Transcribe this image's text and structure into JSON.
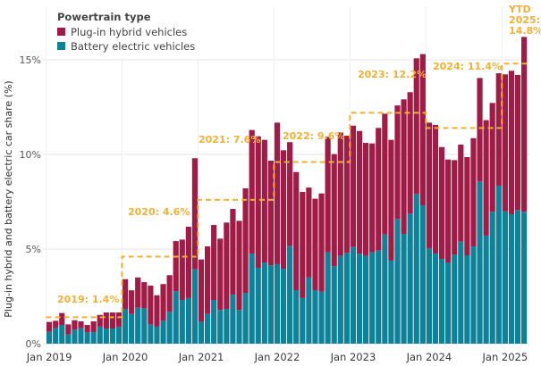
{
  "chart_data": {
    "type": "bar",
    "stacked": true,
    "title": "",
    "xlabel": "",
    "ylabel": "Plug-in hybrid and battery electric car share (%)",
    "ylim": [
      0,
      16.5
    ],
    "yticks": [
      0,
      5,
      10,
      15
    ],
    "ytick_labels": [
      "0%",
      "5%",
      "10%",
      "15%"
    ],
    "grid": "horizontal",
    "legend": {
      "title": "Powertrain type",
      "position": "top-left",
      "entries": [
        "Plug-in hybrid vehicles",
        "Battery electric vehicles"
      ]
    },
    "xtick_labels": [
      {
        "label": "Jan 2019",
        "index": 0
      },
      {
        "label": "Jan 2020",
        "index": 12
      },
      {
        "label": "Jan 2021",
        "index": 24
      },
      {
        "label": "Jan 2022",
        "index": 36
      },
      {
        "label": "Jan 2023",
        "index": 48
      },
      {
        "label": "Jan 2024",
        "index": 60
      },
      {
        "label": "Jan 2025",
        "index": 72
      }
    ],
    "categories": [
      "2019-01",
      "2019-02",
      "2019-03",
      "2019-04",
      "2019-05",
      "2019-06",
      "2019-07",
      "2019-08",
      "2019-09",
      "2019-10",
      "2019-11",
      "2019-12",
      "2020-01",
      "2020-02",
      "2020-03",
      "2020-04",
      "2020-05",
      "2020-06",
      "2020-07",
      "2020-08",
      "2020-09",
      "2020-10",
      "2020-11",
      "2020-12",
      "2021-01",
      "2021-02",
      "2021-03",
      "2021-04",
      "2021-05",
      "2021-06",
      "2021-07",
      "2021-08",
      "2021-09",
      "2021-10",
      "2021-11",
      "2021-12",
      "2022-01",
      "2022-02",
      "2022-03",
      "2022-04",
      "2022-05",
      "2022-06",
      "2022-07",
      "2022-08",
      "2022-09",
      "2022-10",
      "2022-11",
      "2022-12",
      "2023-01",
      "2023-02",
      "2023-03",
      "2023-04",
      "2023-05",
      "2023-06",
      "2023-07",
      "2023-08",
      "2023-09",
      "2023-10",
      "2023-11",
      "2023-12",
      "2024-01",
      "2024-02",
      "2024-03",
      "2024-04",
      "2024-05",
      "2024-06",
      "2024-07",
      "2024-08",
      "2024-09",
      "2024-10",
      "2024-11",
      "2024-12",
      "2025-01",
      "2025-02",
      "2025-03",
      "2025-04"
    ],
    "series": [
      {
        "name": "Battery electric vehicles",
        "color": "#0E8299",
        "values": [
          0.63,
          0.83,
          0.99,
          0.49,
          0.74,
          0.83,
          0.61,
          0.61,
          0.9,
          0.8,
          0.8,
          0.9,
          1.84,
          1.57,
          1.9,
          1.87,
          1.02,
          0.9,
          1.21,
          1.68,
          2.78,
          2.31,
          2.41,
          3.93,
          1.15,
          1.57,
          2.31,
          1.78,
          1.84,
          2.59,
          1.78,
          2.67,
          4.76,
          4.01,
          4.29,
          4.14,
          4.2,
          3.96,
          5.17,
          2.83,
          2.41,
          3.51,
          2.83,
          2.75,
          4.83,
          4.09,
          4.64,
          4.8,
          5.11,
          4.76,
          4.64,
          4.83,
          4.92,
          5.77,
          4.39,
          6.6,
          5.8,
          6.87,
          7.91,
          7.31,
          5.03,
          4.76,
          4.48,
          4.29,
          4.7,
          5.39,
          4.67,
          5.14,
          8.57,
          5.71,
          6.97,
          8.35,
          7.0,
          6.84,
          7.06,
          6.97
        ]
      },
      {
        "name": "Plug-in hybrid vehicles",
        "color": "#A01C47",
        "values": [
          0.52,
          0.38,
          0.63,
          0.53,
          0.5,
          0.35,
          0.38,
          0.57,
          0.62,
          0.85,
          0.85,
          0.75,
          1.57,
          1.25,
          1.6,
          1.38,
          2.05,
          1.66,
          1.94,
          1.94,
          2.64,
          3.19,
          3.77,
          5.87,
          3.3,
          3.57,
          3.96,
          3.77,
          4.56,
          4.53,
          4.71,
          5.54,
          6.53,
          6.95,
          6.48,
          5.53,
          7.48,
          6.26,
          5.48,
          6.24,
          5.61,
          4.74,
          4.83,
          5.19,
          6.1,
          5.93,
          6.52,
          6.19,
          6.41,
          6.48,
          5.97,
          5.75,
          6.48,
          6.38,
          6.38,
          5.99,
          7.11,
          6.42,
          7.17,
          7.99,
          6.65,
          6.8,
          5.91,
          5.44,
          5.0,
          5.13,
          5.19,
          5.72,
          5.47,
          6.1,
          5.75,
          5.94,
          7.23,
          7.58,
          7.14,
          9.24
        ]
      }
    ],
    "annual_averages": [
      {
        "label": "2019: 1.4%",
        "year": 2019,
        "value": 1.4
      },
      {
        "label": "2020: 4.6%",
        "year": 2020,
        "value": 4.6
      },
      {
        "label": "2021: 7.6%",
        "year": 2021,
        "value": 7.6
      },
      {
        "label": "2022: 9.6%",
        "year": 2022,
        "value": 9.6
      },
      {
        "label": "2023: 12.2%",
        "year": 2023,
        "value": 12.2
      },
      {
        "label": "2024: 11.4%",
        "year": 2024,
        "value": 11.4
      },
      {
        "label_lines": [
          "YTD",
          "2025:",
          "14.8%"
        ],
        "year": 2025,
        "value": 14.8
      }
    ],
    "annotation_color": "#F2B134"
  }
}
